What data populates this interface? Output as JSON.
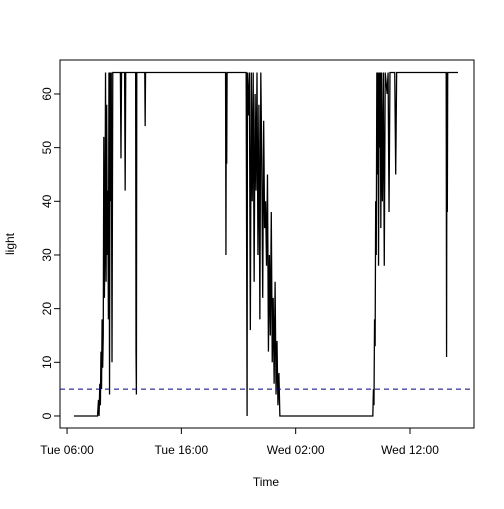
{
  "chart_data": {
    "type": "line",
    "x_label": "Time",
    "y_label": "light",
    "color": "#000000",
    "xlim": [
      "Tue 05:23",
      "Wed 17:36"
    ],
    "xticks": [
      "Tue 06:00",
      "Tue 16:00",
      "Wed 02:00",
      "Wed 12:00"
    ],
    "ylim": [
      -2.24,
      66.33
    ],
    "yticks": [
      0,
      10,
      20,
      30,
      40,
      50,
      60
    ],
    "reference_line": {
      "value": 5,
      "color": "#000080",
      "dashed": true
    },
    "x": [
      "Tue 06:36",
      "Tue 08:40",
      "Tue 08:45",
      "Tue 08:48",
      "Tue 08:52",
      "Tue 08:55",
      "Tue 08:58",
      "Tue 09:01",
      "Tue 09:04",
      "Tue 09:07",
      "Tue 09:10",
      "Tue 09:13",
      "Tue 09:16",
      "Tue 09:19",
      "Tue 09:22",
      "Tue 09:25",
      "Tue 09:28",
      "Tue 09:31",
      "Tue 09:34",
      "Tue 09:37",
      "Tue 09:40",
      "Tue 09:43",
      "Tue 09:46",
      "Tue 09:49",
      "Tue 09:52",
      "Tue 09:56",
      "Tue 10:00",
      "Tue 10:40",
      "Tue 10:43",
      "Tue 10:46",
      "Tue 11:02",
      "Tue 11:05",
      "Tue 11:08",
      "Tue 12:00",
      "Tue 12:02",
      "Tue 12:04",
      "Tue 12:06",
      "Tue 12:48",
      "Tue 12:50",
      "Tue 12:52",
      "Tue 19:52",
      "Tue 19:54",
      "Tue 19:56",
      "Tue 19:58",
      "Tue 20:00",
      "Tue 21:40",
      "Tue 21:43",
      "Tue 21:45",
      "Tue 21:47",
      "Tue 21:52",
      "Tue 21:57",
      "Tue 22:02",
      "Tue 22:07",
      "Tue 22:12",
      "Tue 22:17",
      "Tue 22:22",
      "Tue 22:27",
      "Tue 22:32",
      "Tue 22:37",
      "Tue 22:42",
      "Tue 22:47",
      "Tue 22:52",
      "Tue 22:57",
      "Tue 23:02",
      "Tue 23:07",
      "Tue 23:12",
      "Tue 23:17",
      "Tue 23:22",
      "Tue 23:27",
      "Tue 23:32",
      "Tue 23:37",
      "Tue 23:42",
      "Tue 23:47",
      "Tue 23:52",
      "Tue 23:57",
      "Wed 00:02",
      "Wed 00:07",
      "Wed 00:12",
      "Wed 00:17",
      "Wed 00:22",
      "Wed 00:27",
      "Wed 00:32",
      "Wed 00:37",
      "Wed 00:45",
      "Wed 08:45",
      "Wed 08:48",
      "Wed 08:51",
      "Wed 08:54",
      "Wed 08:57",
      "Wed 09:00",
      "Wed 09:03",
      "Wed 09:06",
      "Wed 09:09",
      "Wed 09:12",
      "Wed 09:15",
      "Wed 09:18",
      "Wed 09:21",
      "Wed 09:24",
      "Wed 09:27",
      "Wed 09:30",
      "Wed 09:35",
      "Wed 09:40",
      "Wed 09:45",
      "Wed 09:50",
      "Wed 10:00",
      "Wed 10:05",
      "Wed 10:10",
      "Wed 10:15",
      "Wed 10:40",
      "Wed 10:45",
      "Wed 10:50",
      "Wed 15:10",
      "Wed 15:12",
      "Wed 15:14",
      "Wed 15:16",
      "Wed 15:18",
      "Wed 16:12"
    ],
    "values": [
      0,
      0,
      3,
      0,
      6,
      2,
      12,
      5,
      18,
      9,
      15,
      52,
      22,
      32,
      64,
      25,
      58,
      30,
      42,
      18,
      64,
      4,
      64,
      40,
      64,
      10,
      64,
      64,
      48,
      64,
      64,
      42,
      64,
      64,
      12,
      4,
      64,
      64,
      54,
      64,
      64,
      30,
      64,
      47,
      64,
      64,
      26,
      0,
      64,
      56,
      64,
      16,
      64,
      40,
      64,
      25,
      60,
      42,
      64,
      30,
      58,
      18,
      64,
      48,
      22,
      55,
      35,
      40,
      28,
      45,
      12,
      30,
      15,
      38,
      10,
      22,
      6,
      25,
      4,
      14,
      2,
      8,
      0,
      0,
      0,
      5,
      2,
      18,
      13,
      40,
      30,
      64,
      45,
      64,
      28,
      64,
      50,
      64,
      35,
      64,
      40,
      64,
      28,
      64,
      60,
      64,
      38,
      64,
      64,
      45,
      64,
      64,
      11,
      64,
      38,
      64,
      64
    ]
  }
}
